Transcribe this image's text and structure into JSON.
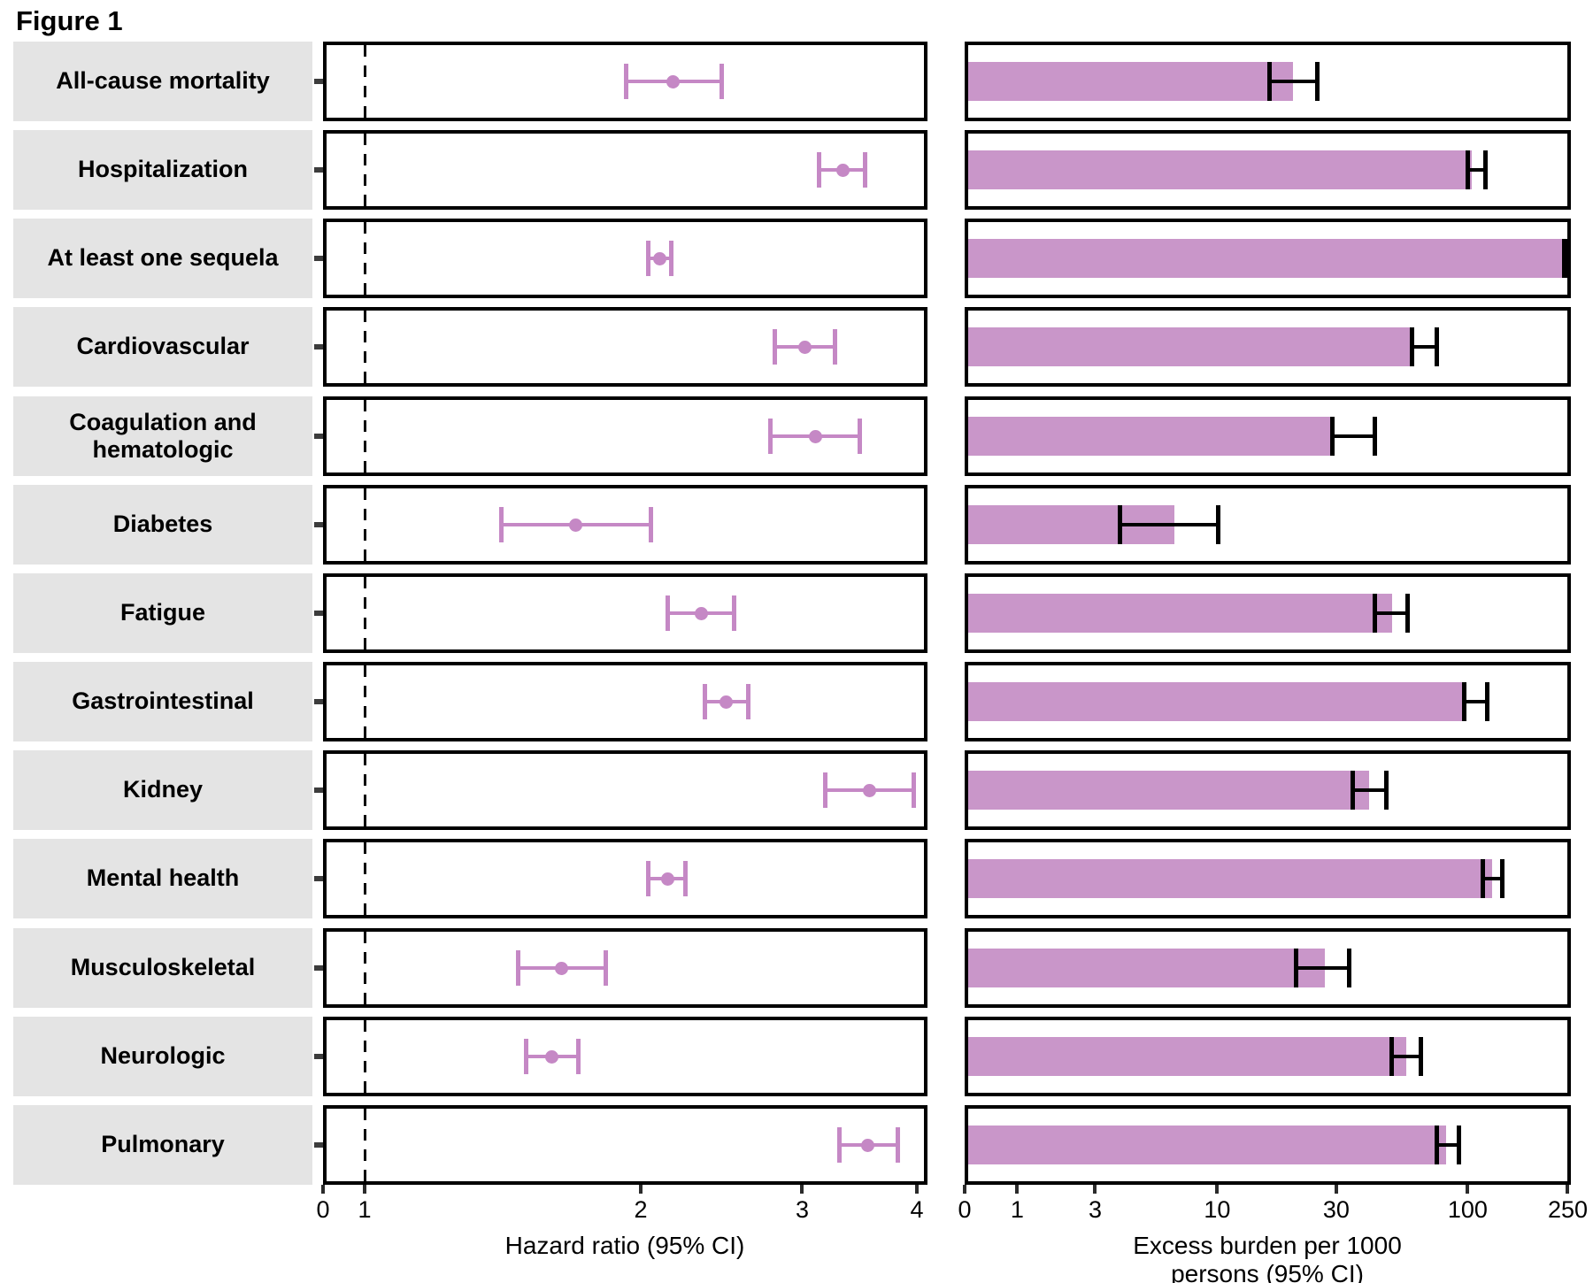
{
  "figure": {
    "title": "Figure 1"
  },
  "colors": {
    "marker": "#c588c5",
    "bar": "#c996c9",
    "error_bar": "#000000",
    "label_background": "#e4e4e4",
    "panel_border": "#000000"
  },
  "axis_titles": {
    "hr": "Hazard ratio (95% CI)",
    "burden_line1": "Excess burden per 1000",
    "burden_line2": "persons (95% CI)"
  },
  "chart_data": {
    "type": "forest-plot",
    "title": "Figure 1",
    "categories": [
      "All-cause mortality",
      "Hospitalization",
      "At least one sequela",
      "Cardiovascular",
      "Coagulation and hematologic",
      "Diabetes",
      "Fatigue",
      "Gastrointestinal",
      "Kidney",
      "Mental health",
      "Musculoskeletal",
      "Neurologic",
      "Pulmonary"
    ],
    "series": [
      {
        "name": "Hazard ratio (95% CI)",
        "type": "scatter",
        "xscale": "log10",
        "xlim": [
          1,
          4
        ],
        "ticks": [
          0,
          1,
          2,
          3,
          4
        ],
        "reference_line_x": 1,
        "values": [
          2.17,
          3.32,
          2.1,
          3.02,
          3.1,
          1.7,
          2.33,
          2.48,
          3.55,
          2.14,
          1.64,
          1.6,
          3.54
        ],
        "ci_lo": [
          1.93,
          3.13,
          2.04,
          2.8,
          2.77,
          1.41,
          2.14,
          2.35,
          3.18,
          2.04,
          1.47,
          1.5,
          3.29
        ],
        "ci_hi": [
          2.45,
          3.51,
          2.16,
          3.26,
          3.47,
          2.05,
          2.53,
          2.62,
          3.97,
          2.24,
          1.83,
          1.71,
          3.81
        ]
      },
      {
        "name": "Excess burden per 1000 persons (95% CI)",
        "type": "bar",
        "xscale": "pseudo-log-asinh",
        "xlim": [
          0,
          250
        ],
        "ticks": [
          0,
          1,
          3,
          10,
          30,
          100,
          250
        ],
        "values": [
          20.2,
          104.0,
          248.0,
          61.2,
          29.4,
          6.7,
          50.0,
          98.8,
          40.4,
          125.3,
          26.9,
          56.8,
          82.1
        ],
        "ci_lo": [
          16.3,
          100.1,
          242.5,
          59.9,
          29.0,
          3.9,
          42.6,
          97.0,
          34.8,
          115.3,
          20.8,
          49.9,
          75.4
        ],
        "ci_hi": [
          25.2,
          117.4,
          255.0,
          75.5,
          42.6,
          10.1,
          57.9,
          119.5,
          47.6,
          137.6,
          33.7,
          65.2,
          92.4
        ]
      }
    ],
    "legend": "none",
    "grid": "off"
  }
}
